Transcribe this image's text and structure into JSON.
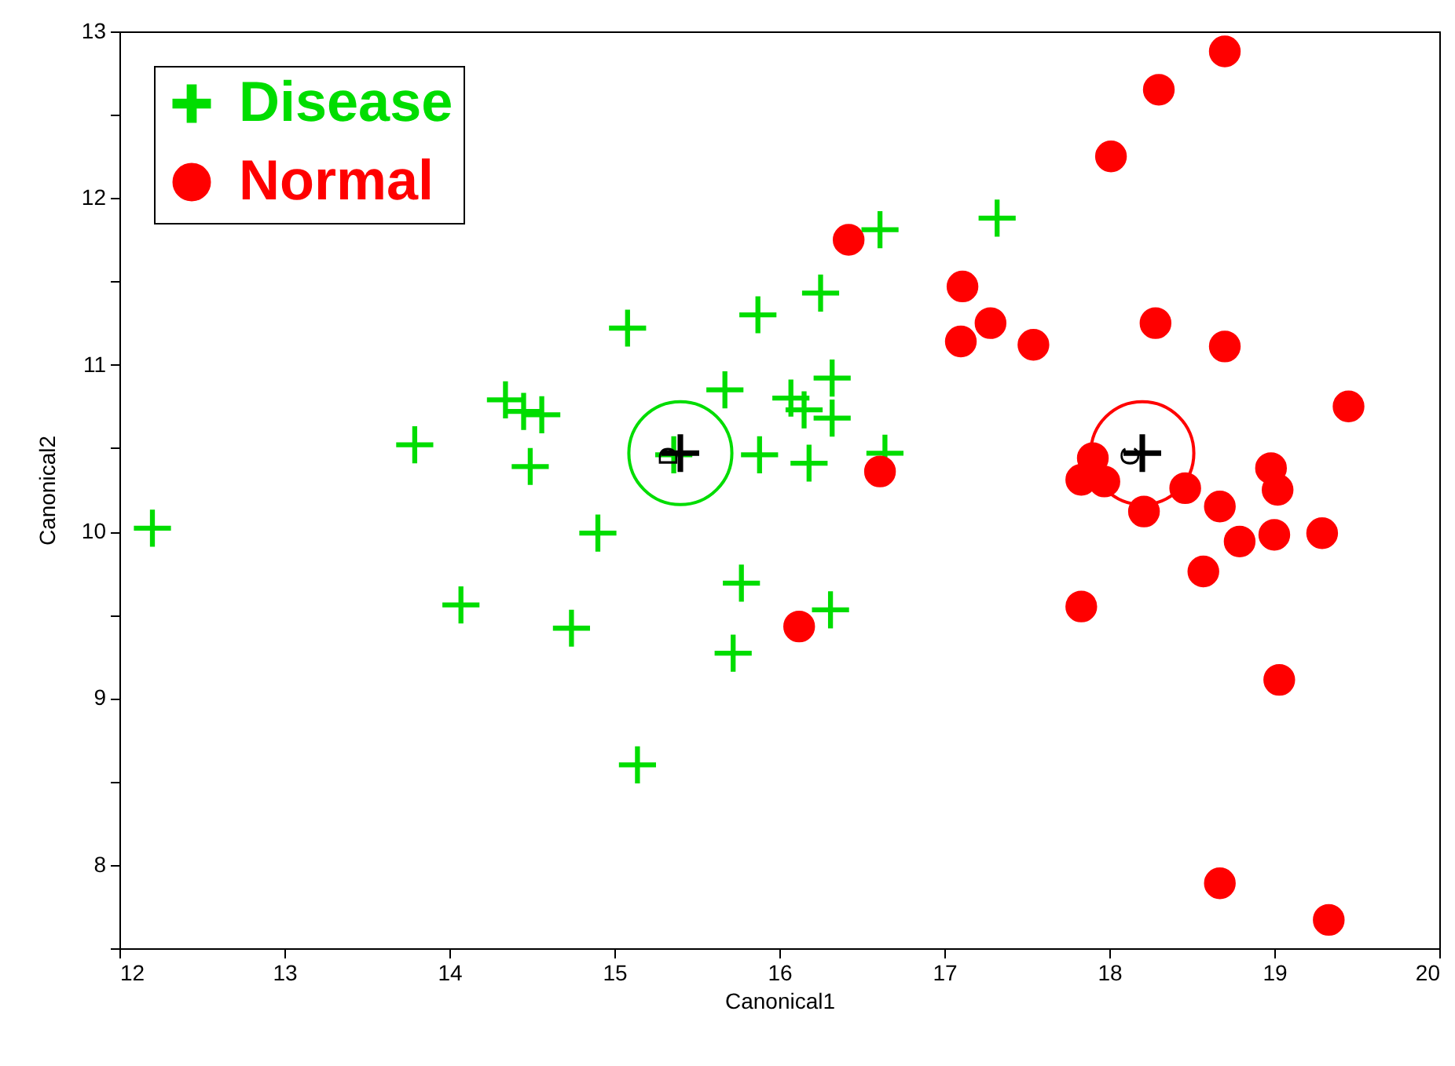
{
  "chart_data": {
    "type": "scatter",
    "xlabel": "Canonical1",
    "ylabel": "Canonical2",
    "xlim": [
      12,
      20
    ],
    "ylim": [
      7.5,
      13
    ],
    "xticks": [
      12,
      13,
      14,
      15,
      16,
      17,
      18,
      19,
      20
    ],
    "yticks": [
      {
        "value": 7.5,
        "label": null
      },
      8,
      {
        "value": 8.5,
        "label": null
      },
      9,
      {
        "value": 9.5,
        "label": null
      },
      10,
      {
        "value": 10.5,
        "label": null
      },
      11,
      {
        "value": 11.5,
        "label": null
      },
      12,
      {
        "value": 12.5,
        "label": null
      },
      13
    ],
    "grid": false,
    "legend": "top left",
    "series": [
      {
        "name": "Disease",
        "type": "scatter",
        "marker": "cross",
        "color": "#00dd00",
        "x": [
          12.2,
          13.79,
          14.07,
          14.34,
          14.45,
          14.56,
          14.49,
          14.9,
          14.74,
          15.14,
          15.08,
          15.67,
          15.36,
          15.87,
          16.25,
          15.88,
          16.07,
          16.15,
          16.32,
          16.32,
          16.18,
          15.77,
          15.72,
          16.31,
          16.61,
          17.32,
          16.64
        ],
        "values": [
          10.02,
          10.52,
          9.56,
          10.79,
          10.72,
          10.7,
          10.39,
          9.99,
          9.42,
          8.6,
          11.22,
          10.85,
          10.46,
          11.3,
          11.43,
          10.46,
          10.8,
          10.73,
          10.92,
          10.68,
          10.41,
          9.69,
          9.27,
          9.53,
          11.81,
          11.88,
          10.47
        ]
      },
      {
        "name": "Normal",
        "type": "scatter",
        "marker": "circle",
        "color": "#ff0000",
        "x": [
          16.42,
          17.11,
          17.28,
          17.1,
          17.54,
          16.61,
          16.12,
          18.7,
          18.3,
          18.01,
          18.28,
          18.7,
          19.45,
          17.9,
          17.83,
          17.97,
          18.21,
          18.46,
          18.67,
          18.98,
          19.02,
          18.79,
          19.0,
          19.29,
          18.57,
          17.83,
          19.03,
          18.67,
          19.33
        ],
        "values": [
          11.75,
          11.47,
          11.25,
          11.14,
          11.12,
          10.36,
          9.43,
          12.88,
          12.65,
          12.25,
          11.25,
          11.11,
          10.75,
          10.44,
          10.31,
          10.3,
          10.12,
          10.26,
          10.15,
          10.38,
          10.25,
          9.94,
          9.98,
          9.99,
          9.76,
          9.55,
          9.11,
          7.89,
          7.67
        ]
      },
      {
        "type": "bubble",
        "x": [
          15.4,
          18.2
        ],
        "values": [
          10.47,
          10.47
        ],
        "sizes": [
          1,
          1
        ],
        "colors": [
          "#00dd00",
          "#ff0000"
        ]
      },
      {
        "type": "scatter",
        "marker": "cross",
        "color": "#000000",
        "x": [
          15.4,
          18.2
        ],
        "values": [
          10.47,
          10.47
        ]
      }
    ],
    "annotations": [
      {
        "text": "D",
        "x": 15.4,
        "y": 10.47
      },
      {
        "text": "C",
        "x": 18.2,
        "y": 10.47
      }
    ]
  }
}
